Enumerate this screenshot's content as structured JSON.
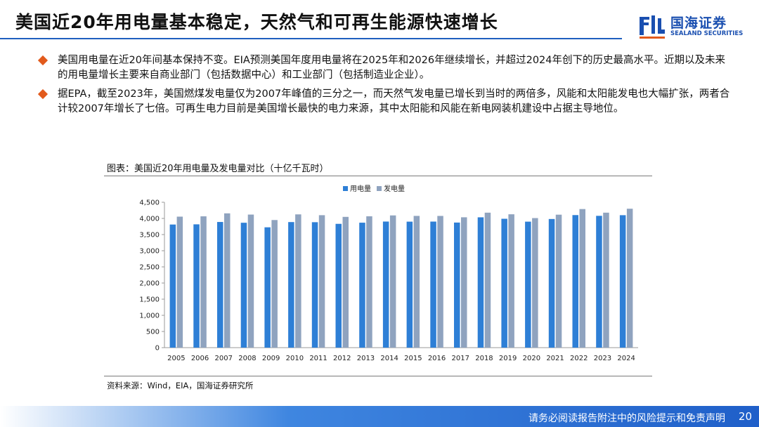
{
  "header": {
    "title": "美国近20年用电量基本稳定，天然气和可再生能源快速增长",
    "logo": {
      "name_cn": "国海证券",
      "name_en": "SEALAND SECURITIES"
    }
  },
  "bullets": [
    {
      "icon": "diamond-bullet-icon",
      "text": "美国用电量在近20年间基本保持不变。EIA预测美国年度用电量将在2025年和2026年继续增长，并超过2024年创下的历史最高水平。近期以及未来的用电量增长主要来自商业部门（包括数据中心）和工业部门（包括制造业企业）。"
    },
    {
      "icon": "diamond-bullet-icon",
      "text": "据EPA，截至2023年，美国燃煤发电量仅为2007年峰值的三分之一，而天然气发电量已增长到当时的两倍多，风能和太阳能发电也大幅扩张，两者合计较2007年增长了七倍。可再生电力目前是美国增长最快的电力来源，其中太阳能和风能在新电网装机建设中占据主导地位。"
    }
  ],
  "chart_caption": "图表：美国近20年用电量及发电量对比（十亿千瓦时）",
  "chart_data": {
    "type": "bar",
    "categories": [
      "2005",
      "2006",
      "2007",
      "2008",
      "2009",
      "2010",
      "2011",
      "2012",
      "2013",
      "2014",
      "2015",
      "2016",
      "2017",
      "2018",
      "2019",
      "2020",
      "2021",
      "2022",
      "2023",
      "2024"
    ],
    "series": [
      {
        "name": "用电量",
        "color": "#2e7fd6",
        "values": [
          3811,
          3817,
          3890,
          3866,
          3725,
          3887,
          3883,
          3832,
          3868,
          3903,
          3900,
          3902,
          3872,
          4034,
          3989,
          3900,
          3982,
          4103,
          4080,
          4100
        ]
      },
      {
        "name": "发电量",
        "color": "#8fa3bf",
        "values": [
          4055,
          4065,
          4157,
          4119,
          3950,
          4125,
          4100,
          4048,
          4066,
          4093,
          4078,
          4077,
          4035,
          4178,
          4128,
          4010,
          4116,
          4290,
          4178,
          4300
        ]
      }
    ],
    "yticks": [
      "0",
      "500",
      "1,000",
      "1,500",
      "2,000",
      "2,500",
      "3,000",
      "3,500",
      "4,000",
      "4,500"
    ],
    "ylim": [
      0,
      4500
    ],
    "legend_position": "top",
    "grid": false
  },
  "source": "资料来源：Wind，EIA，国海证券研究所",
  "footer": {
    "disclaimer": "请务必阅读报告附注中的风险提示和免责声明",
    "page": "20"
  }
}
